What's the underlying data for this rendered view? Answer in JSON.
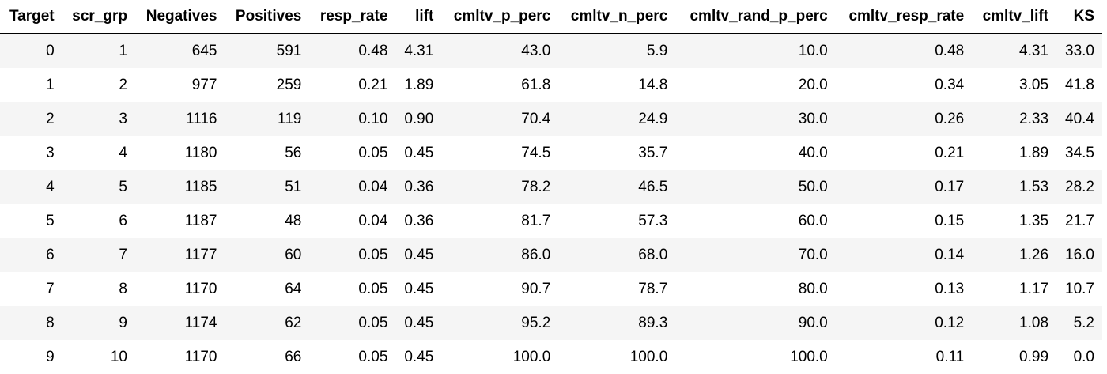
{
  "table": {
    "columns": [
      "Target",
      "scr_grp",
      "Negatives",
      "Positives",
      "resp_rate",
      "lift",
      "cmltv_p_perc",
      "cmltv_n_perc",
      "cmltv_rand_p_perc",
      "cmltv_resp_rate",
      "cmltv_lift",
      "KS"
    ],
    "rows": [
      [
        "0",
        "1",
        "645",
        "591",
        "0.48",
        "4.31",
        "43.0",
        "5.9",
        "10.0",
        "0.48",
        "4.31",
        "33.0"
      ],
      [
        "1",
        "2",
        "977",
        "259",
        "0.21",
        "1.89",
        "61.8",
        "14.8",
        "20.0",
        "0.34",
        "3.05",
        "41.8"
      ],
      [
        "2",
        "3",
        "1116",
        "119",
        "0.10",
        "0.90",
        "70.4",
        "24.9",
        "30.0",
        "0.26",
        "2.33",
        "40.4"
      ],
      [
        "3",
        "4",
        "1180",
        "56",
        "0.05",
        "0.45",
        "74.5",
        "35.7",
        "40.0",
        "0.21",
        "1.89",
        "34.5"
      ],
      [
        "4",
        "5",
        "1185",
        "51",
        "0.04",
        "0.36",
        "78.2",
        "46.5",
        "50.0",
        "0.17",
        "1.53",
        "28.2"
      ],
      [
        "5",
        "6",
        "1187",
        "48",
        "0.04",
        "0.36",
        "81.7",
        "57.3",
        "60.0",
        "0.15",
        "1.35",
        "21.7"
      ],
      [
        "6",
        "7",
        "1177",
        "60",
        "0.05",
        "0.45",
        "86.0",
        "68.0",
        "70.0",
        "0.14",
        "1.26",
        "16.0"
      ],
      [
        "7",
        "8",
        "1170",
        "64",
        "0.05",
        "0.45",
        "90.7",
        "78.7",
        "80.0",
        "0.13",
        "1.17",
        "10.7"
      ],
      [
        "8",
        "9",
        "1174",
        "62",
        "0.05",
        "0.45",
        "95.2",
        "89.3",
        "90.0",
        "0.12",
        "1.08",
        "5.2"
      ],
      [
        "9",
        "10",
        "1170",
        "66",
        "0.05",
        "0.45",
        "100.0",
        "100.0",
        "100.0",
        "0.11",
        "0.99",
        "0.0"
      ]
    ]
  }
}
